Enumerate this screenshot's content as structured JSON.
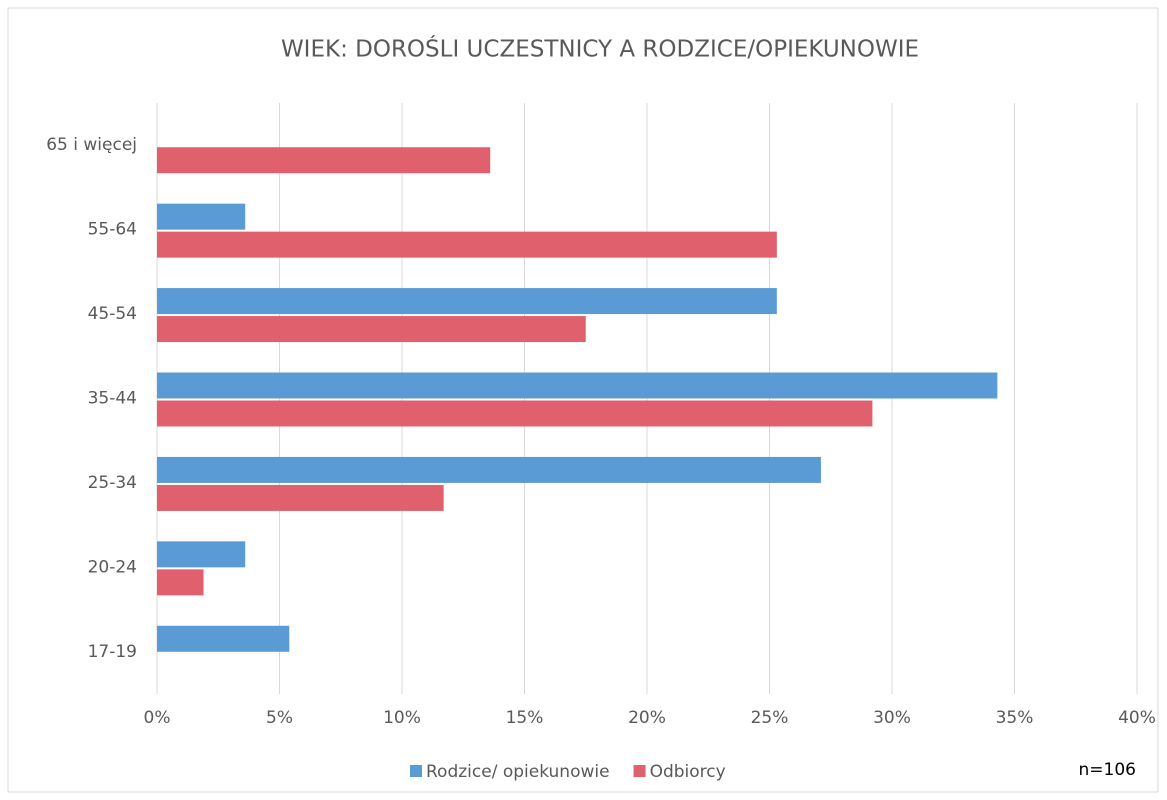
{
  "chart_data": {
    "type": "bar",
    "orientation": "horizontal",
    "title": "WIEK: DOROŚLI UCZESTNICY A RODZICE/OPIEKUNOWIE",
    "annotation": "n=106",
    "categories": [
      "65 i więcej",
      "55-64",
      "45-54",
      "35-44",
      "25-34",
      "20-24",
      "17-19"
    ],
    "series": [
      {
        "name": "Rodzice/ opiekunowie",
        "color": "#5b9bd5",
        "values": [
          null,
          3.6,
          25.3,
          34.3,
          27.1,
          3.6,
          5.4
        ]
      },
      {
        "name": "Odbiorcy",
        "color": "#e0606e",
        "values": [
          13.6,
          25.3,
          17.5,
          29.2,
          11.7,
          1.9,
          null
        ]
      }
    ],
    "xlim": [
      0,
      40
    ],
    "xticks": [
      {
        "value": 0,
        "label": "0%"
      },
      {
        "value": 5,
        "label": "5%"
      },
      {
        "value": 10,
        "label": "10%"
      },
      {
        "value": 15,
        "label": "15%"
      },
      {
        "value": 20,
        "label": "20%"
      },
      {
        "value": 25,
        "label": "25%"
      },
      {
        "value": 30,
        "label": "30%"
      },
      {
        "value": 35,
        "label": "35%"
      },
      {
        "value": 40,
        "label": "40%"
      }
    ],
    "grid": true,
    "legend": "bottom"
  }
}
